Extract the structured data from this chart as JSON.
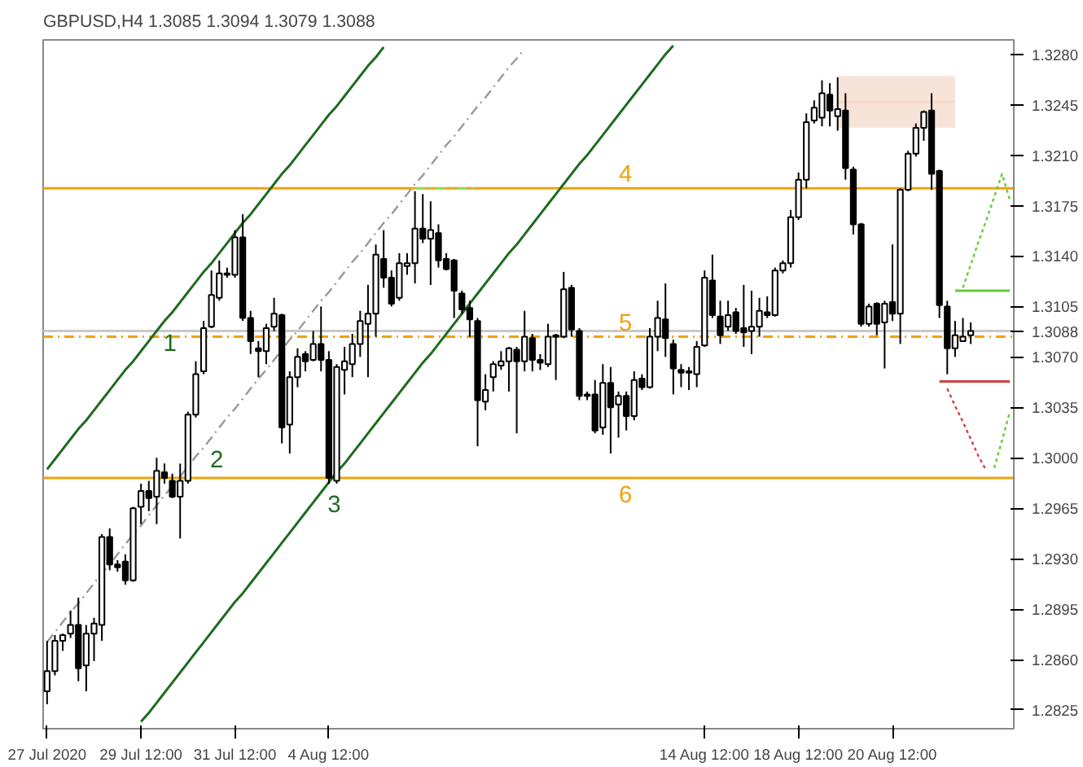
{
  "chart_data": {
    "type": "candlestick",
    "title": "GBPUSD,H4  1.3085 1.3094 1.3079 1.3088",
    "categories": [
      "27 Jul 2020",
      null,
      null,
      null,
      null,
      null,
      null,
      null,
      null,
      null,
      null,
      null,
      "29 Jul 12:00",
      null,
      null,
      null,
      null,
      null,
      null,
      null,
      null,
      null,
      null,
      null,
      "31 Jul 12:00",
      null,
      null,
      null,
      null,
      null,
      null,
      null,
      null,
      null,
      null,
      null,
      "4 Aug 12:00",
      null,
      null,
      null,
      null,
      null,
      null,
      null,
      null,
      null,
      null,
      null,
      null,
      null,
      null,
      null,
      null,
      null,
      null,
      null,
      null,
      null,
      null,
      null,
      null,
      null,
      null,
      null,
      null,
      null,
      null,
      null,
      null,
      null,
      null,
      null,
      null,
      null,
      null,
      null,
      null,
      null,
      null,
      null,
      null,
      null,
      null,
      null,
      "14 Aug 12:00",
      null,
      null,
      null,
      null,
      null,
      null,
      null,
      null,
      null,
      null,
      null,
      "18 Aug 12:00",
      null,
      null,
      null,
      null,
      null,
      null,
      null,
      null,
      null,
      null,
      null,
      "20 Aug 12:00",
      null,
      null,
      null,
      null,
      null,
      null,
      null,
      null,
      null,
      null,
      null,
      null,
      null,
      null,
      null
    ],
    "ohlc": [
      [
        1.2838,
        1.2873,
        1.2829,
        1.2852
      ],
      [
        1.2852,
        1.2877,
        1.2849,
        1.2873
      ],
      [
        1.2873,
        1.2878,
        1.2866,
        1.2877
      ],
      [
        1.2878,
        1.2894,
        1.2875,
        1.2884
      ],
      [
        1.2884,
        1.2903,
        1.2845,
        1.2854
      ],
      [
        1.2856,
        1.2884,
        1.2838,
        1.2878
      ],
      [
        1.2878,
        1.2889,
        1.2859,
        1.2885
      ],
      [
        1.2884,
        1.2947,
        1.2873,
        1.2945
      ],
      [
        1.2945,
        1.2951,
        1.2922,
        1.2926
      ],
      [
        1.2926,
        1.2929,
        1.2921,
        1.2924
      ],
      [
        1.2928,
        1.2933,
        1.2912,
        1.2915
      ],
      [
        1.2915,
        1.2966,
        1.2914,
        1.2965
      ],
      [
        1.2966,
        1.2982,
        1.2954,
        1.2977
      ],
      [
        1.2977,
        1.2984,
        1.2963,
        1.2972
      ],
      [
        1.2973,
        1.3,
        1.2954,
        1.2991
      ],
      [
        1.299,
        1.2996,
        1.2982,
        1.2986
      ],
      [
        1.2984,
        1.2989,
        1.2972,
        1.2973
      ],
      [
        1.2973,
        1.2996,
        1.2944,
        1.2984
      ],
      [
        1.2984,
        1.3032,
        1.2982,
        1.303
      ],
      [
        1.303,
        1.3067,
        1.3028,
        1.3058
      ],
      [
        1.306,
        1.3095,
        1.3058,
        1.309
      ],
      [
        1.3091,
        1.313,
        1.309,
        1.3113
      ],
      [
        1.3111,
        1.3137,
        1.3109,
        1.3128
      ],
      [
        1.3128,
        1.3132,
        1.3125,
        1.3127
      ],
      [
        1.3127,
        1.3158,
        1.3125,
        1.3153
      ],
      [
        1.3153,
        1.3169,
        1.3095,
        1.3097
      ],
      [
        1.3097,
        1.3102,
        1.3072,
        1.3081
      ],
      [
        1.3076,
        1.3081,
        1.3056,
        1.3074
      ],
      [
        1.3074,
        1.3093,
        1.3065,
        1.309
      ],
      [
        1.3091,
        1.3111,
        1.3088,
        1.31
      ],
      [
        1.3099,
        1.31,
        1.301,
        1.3021
      ],
      [
        1.3023,
        1.306,
        1.3003,
        1.3056
      ],
      [
        1.3056,
        1.3076,
        1.3049,
        1.307
      ],
      [
        1.3072,
        1.3074,
        1.306,
        1.3067
      ],
      [
        1.3068,
        1.3088,
        1.3067,
        1.3079
      ],
      [
        1.3079,
        1.3105,
        1.306,
        1.3068
      ],
      [
        1.3068,
        1.3074,
        1.2982,
        1.2986
      ],
      [
        1.2984,
        1.3065,
        1.2982,
        1.3063
      ],
      [
        1.3061,
        1.3077,
        1.3044,
        1.3067
      ],
      [
        1.3065,
        1.3086,
        1.3056,
        1.3079
      ],
      [
        1.3079,
        1.3102,
        1.307,
        1.3095
      ],
      [
        1.3093,
        1.312,
        1.3056,
        1.31
      ],
      [
        1.31,
        1.3148,
        1.3084,
        1.3141
      ],
      [
        1.3138,
        1.3158,
        1.3118,
        1.3125
      ],
      [
        1.3125,
        1.313,
        1.3105,
        1.3107
      ],
      [
        1.3111,
        1.3142,
        1.3109,
        1.3135
      ],
      [
        1.3133,
        1.3142,
        1.3127,
        1.3135
      ],
      [
        1.3135,
        1.3185,
        1.3121,
        1.3159
      ],
      [
        1.3159,
        1.3183,
        1.3149,
        1.3152
      ],
      [
        1.3152,
        1.3178,
        1.312,
        1.3158
      ],
      [
        1.3156,
        1.3162,
        1.3132,
        1.3137
      ],
      [
        1.3138,
        1.3142,
        1.313,
        1.3131
      ],
      [
        1.3137,
        1.3138,
        1.3097,
        1.3116
      ],
      [
        1.3114,
        1.3116,
        1.31,
        1.3103
      ],
      [
        1.3104,
        1.3109,
        1.3084,
        1.3096
      ],
      [
        1.3095,
        1.3097,
        1.3008,
        1.304
      ],
      [
        1.3039,
        1.3058,
        1.3033,
        1.3047
      ],
      [
        1.3056,
        1.3067,
        1.3046,
        1.3065
      ],
      [
        1.3064,
        1.3074,
        1.3061,
        1.3067
      ],
      [
        1.3067,
        1.3077,
        1.3046,
        1.3076
      ],
      [
        1.3075,
        1.3077,
        1.3017,
        1.3067
      ],
      [
        1.3067,
        1.3102,
        1.306,
        1.3084
      ],
      [
        1.3083,
        1.3086,
        1.306,
        1.3068
      ],
      [
        1.3068,
        1.3072,
        1.3061,
        1.3066
      ],
      [
        1.3065,
        1.3093,
        1.3063,
        1.3084
      ],
      [
        1.3084,
        1.3086,
        1.3054,
        1.3085
      ],
      [
        1.3084,
        1.3129,
        1.3083,
        1.3117
      ],
      [
        1.3118,
        1.312,
        1.3084,
        1.3089
      ],
      [
        1.3088,
        1.309,
        1.304,
        1.3043
      ],
      [
        1.3043,
        1.3046,
        1.304,
        1.3044
      ],
      [
        1.3044,
        1.3054,
        1.3017,
        1.3019
      ],
      [
        1.3021,
        1.3065,
        1.3016,
        1.3052
      ],
      [
        1.3052,
        1.3063,
        1.3003,
        1.3035
      ],
      [
        1.3037,
        1.3046,
        1.3014,
        1.3043
      ],
      [
        1.3043,
        1.3046,
        1.3019,
        1.3029
      ],
      [
        1.3029,
        1.306,
        1.3026,
        1.3054
      ],
      [
        1.3055,
        1.3058,
        1.3047,
        1.3049
      ],
      [
        1.3049,
        1.309,
        1.3048,
        1.3084
      ],
      [
        1.3084,
        1.3109,
        1.3074,
        1.3097
      ],
      [
        1.3096,
        1.3121,
        1.307,
        1.3083
      ],
      [
        1.3079,
        1.3082,
        1.3044,
        1.3062
      ],
      [
        1.3061,
        1.3065,
        1.3049,
        1.3059
      ],
      [
        1.306,
        1.3063,
        1.3047,
        1.3059
      ],
      [
        1.3058,
        1.3081,
        1.3049,
        1.3077
      ],
      [
        1.3078,
        1.313,
        1.3077,
        1.3125
      ],
      [
        1.3123,
        1.3141,
        1.3097,
        1.3099
      ],
      [
        1.3098,
        1.3109,
        1.3079,
        1.3085
      ],
      [
        1.3091,
        1.3109,
        1.3088,
        1.3099
      ],
      [
        1.3101,
        1.3104,
        1.3086,
        1.3088
      ],
      [
        1.309,
        1.312,
        1.3077,
        1.3087
      ],
      [
        1.3088,
        1.3116,
        1.3072,
        1.3091
      ],
      [
        1.3091,
        1.3111,
        1.3084,
        1.3102
      ],
      [
        1.3101,
        1.3112,
        1.3097,
        1.3099
      ],
      [
        1.3099,
        1.3132,
        1.3098,
        1.313
      ],
      [
        1.313,
        1.3137,
        1.3128,
        1.3135
      ],
      [
        1.3135,
        1.3172,
        1.3132,
        1.3167
      ],
      [
        1.3167,
        1.3198,
        1.3165,
        1.3193
      ],
      [
        1.3193,
        1.3239,
        1.3187,
        1.3233
      ],
      [
        1.3234,
        1.3248,
        1.3232,
        1.3243
      ],
      [
        1.3236,
        1.3262,
        1.323,
        1.3253
      ],
      [
        1.3252,
        1.326,
        1.323,
        1.3241
      ],
      [
        1.3237,
        1.3264,
        1.3227,
        1.3242
      ],
      [
        1.3241,
        1.3253,
        1.3193,
        1.3201
      ],
      [
        1.32,
        1.3202,
        1.3155,
        1.3162
      ],
      [
        1.3162,
        1.3163,
        1.3091,
        1.3093
      ],
      [
        1.3093,
        1.3107,
        1.3091,
        1.3105
      ],
      [
        1.3107,
        1.3108,
        1.3085,
        1.3093
      ],
      [
        1.3094,
        1.3109,
        1.3062,
        1.3107
      ],
      [
        1.3108,
        1.3148,
        1.3095,
        1.31
      ],
      [
        1.31,
        1.3187,
        1.3079,
        1.3186
      ],
      [
        1.3186,
        1.3213,
        1.3185,
        1.3211
      ],
      [
        1.3211,
        1.3232,
        1.3209,
        1.3229
      ],
      [
        1.3229,
        1.3241,
        1.322,
        1.324
      ],
      [
        1.3241,
        1.3253,
        1.3186,
        1.3197
      ],
      [
        1.3199,
        1.32,
        1.3097,
        1.3106
      ],
      [
        1.3105,
        1.3109,
        1.3058,
        1.3076
      ],
      [
        1.3076,
        1.3095,
        1.307,
        1.3085
      ],
      [
        1.3081,
        1.3097,
        1.3081,
        1.3084
      ],
      [
        1.3085,
        1.3094,
        1.3079,
        1.3088
      ],
      null,
      null,
      null,
      null,
      null
    ],
    "series": [
      {
        "type": "line",
        "color": "#f3d9c8",
        "line_style": "solid",
        "upper": [
          null,
          null,
          null,
          null,
          null,
          null,
          null,
          null,
          null,
          null,
          null,
          null,
          null,
          null,
          null,
          null,
          null,
          null,
          null,
          null,
          null,
          null,
          null,
          null,
          null,
          null,
          null,
          null,
          null,
          null,
          null,
          null,
          null,
          null,
          null,
          null,
          null,
          null,
          null,
          null,
          null,
          null,
          null,
          null,
          null,
          null,
          null,
          null,
          null,
          null,
          null,
          null,
          null,
          null,
          null,
          null,
          null,
          null,
          null,
          null,
          null,
          null,
          null,
          null,
          null,
          null,
          null,
          null,
          null,
          null,
          null,
          null,
          null,
          null,
          null,
          null,
          null,
          null,
          null,
          null,
          null,
          null,
          null,
          null,
          null,
          null,
          null,
          null,
          null,
          null,
          null,
          null,
          null,
          null,
          null,
          null,
          null,
          null,
          null,
          null,
          null,
          1.3265,
          1.3265,
          1.3265,
          1.3265,
          1.3265,
          1.3265,
          1.3265,
          1.3265,
          1.3265,
          1.3265,
          1.3265,
          1.3265,
          1.3265,
          1.3265,
          1.3265,
          1.3265,
          null,
          null,
          null,
          null,
          null,
          null,
          null
        ],
        "lower": [
          null,
          null,
          null,
          null,
          null,
          null,
          null,
          null,
          null,
          null,
          null,
          null,
          null,
          null,
          null,
          null,
          null,
          null,
          null,
          null,
          null,
          null,
          null,
          null,
          null,
          null,
          null,
          null,
          null,
          null,
          null,
          null,
          null,
          null,
          null,
          null,
          null,
          null,
          null,
          null,
          null,
          null,
          null,
          null,
          null,
          null,
          null,
          null,
          null,
          null,
          null,
          null,
          null,
          null,
          null,
          null,
          null,
          null,
          null,
          null,
          null,
          null,
          null,
          null,
          null,
          null,
          null,
          null,
          null,
          null,
          null,
          null,
          null,
          null,
          null,
          null,
          null,
          null,
          null,
          null,
          null,
          null,
          null,
          null,
          null,
          null,
          null,
          null,
          null,
          null,
          null,
          null,
          null,
          null,
          null,
          null,
          null,
          null,
          null,
          null,
          null,
          1.3229,
          1.3229,
          1.3229,
          1.3229,
          1.3229,
          1.3229,
          1.3229,
          1.3229,
          1.3229,
          1.3229,
          1.3229,
          1.3229,
          1.3229,
          1.3229,
          1.3229,
          1.3229,
          null,
          null,
          null,
          null,
          null,
          null,
          null
        ],
        "values": [
          null,
          null,
          null,
          null,
          null,
          null,
          null,
          null,
          null,
          null,
          null,
          null,
          null,
          null,
          null,
          null,
          null,
          null,
          null,
          null,
          null,
          null,
          null,
          null,
          null,
          null,
          null,
          null,
          null,
          null,
          null,
          null,
          null,
          null,
          null,
          null,
          null,
          null,
          null,
          null,
          null,
          null,
          null,
          null,
          null,
          null,
          null,
          null,
          null,
          null,
          null,
          null,
          null,
          null,
          null,
          null,
          null,
          null,
          null,
          null,
          null,
          null,
          null,
          null,
          null,
          null,
          null,
          null,
          null,
          null,
          null,
          null,
          null,
          null,
          null,
          null,
          null,
          null,
          null,
          null,
          null,
          null,
          null,
          null,
          null,
          null,
          null,
          null,
          null,
          null,
          null,
          null,
          null,
          null,
          null,
          null,
          null,
          null,
          null,
          null,
          null,
          1.3247,
          1.3247,
          1.3247,
          1.3247,
          1.3247,
          1.3247,
          1.3247,
          1.3247,
          1.3247,
          1.3247,
          1.3247,
          1.3247,
          1.3247,
          1.3247,
          1.3247,
          1.3247,
          null,
          null,
          null,
          null,
          null,
          null,
          null
        ]
      },
      {
        "type": "line",
        "name": "1",
        "color": "#1e6b1e",
        "line_style": "solid",
        "values": [
          1.2992,
          1.2999,
          1.3006,
          1.3013,
          1.302,
          1.3026,
          1.3033,
          1.304,
          1.3047,
          1.3054,
          1.3061,
          1.3067,
          1.3074,
          1.3081,
          1.3088,
          1.3095,
          1.3101,
          1.3108,
          1.3115,
          1.3122,
          1.3129,
          1.3135,
          1.3142,
          1.3149,
          1.3156,
          1.3163,
          1.3169,
          1.3176,
          1.3183,
          1.319,
          1.3197,
          1.3203,
          1.321,
          1.3217,
          1.3224,
          1.3231,
          1.3238,
          1.3244,
          1.3251,
          1.3258,
          1.3265,
          1.3272,
          1.3278,
          1.3285,
          null,
          null,
          null,
          null,
          null,
          null,
          null,
          null,
          null,
          null,
          null,
          null,
          null,
          null,
          null,
          null,
          null,
          null,
          null,
          null,
          null,
          null,
          null,
          null,
          null,
          null,
          null,
          null,
          null,
          null,
          null,
          null,
          null,
          null,
          null,
          null,
          null,
          null,
          null,
          null,
          null,
          null,
          null,
          null,
          null,
          null,
          null,
          null,
          null,
          null,
          null,
          null,
          null,
          null,
          null,
          null,
          null,
          null,
          null,
          null,
          null,
          null,
          null,
          null,
          null,
          null,
          null,
          null,
          null,
          null,
          null,
          null,
          null,
          null,
          null,
          null,
          null,
          null,
          null,
          null
        ]
      },
      {
        "type": "line",
        "name": "2",
        "color": "#999999",
        "line_style": "dashed",
        "values": [
          1.2872,
          1.2879,
          1.2886,
          1.2893,
          1.2899,
          1.2906,
          1.2913,
          1.292,
          1.2926,
          1.2933,
          1.294,
          1.2947,
          1.2953,
          1.296,
          1.2967,
          1.2974,
          1.298,
          1.2987,
          1.2994,
          1.3001,
          1.3007,
          1.3014,
          1.3021,
          1.3028,
          1.3034,
          1.3041,
          1.3048,
          1.3055,
          1.3061,
          1.3068,
          1.3075,
          1.3082,
          1.3088,
          1.3095,
          1.3102,
          1.3109,
          1.3115,
          1.3122,
          1.3129,
          1.3136,
          1.3142,
          1.3149,
          1.3156,
          1.3163,
          1.3169,
          1.3176,
          1.3183,
          1.319,
          1.3196,
          1.3203,
          1.321,
          1.3217,
          1.3223,
          1.323,
          1.3237,
          1.3244,
          1.325,
          1.3257,
          1.3264,
          1.3271,
          1.3277,
          1.3284,
          null,
          null,
          null,
          null,
          null,
          null,
          null,
          null,
          null,
          null,
          null,
          null,
          null,
          null,
          null,
          null,
          null,
          null,
          null,
          null,
          null,
          null,
          null,
          null,
          null,
          null,
          null,
          null,
          null,
          null,
          null,
          null,
          null,
          null,
          null,
          null,
          null,
          null,
          null,
          null,
          null,
          null,
          null,
          null,
          null,
          null,
          null,
          null,
          null,
          null,
          null,
          null,
          null,
          null,
          null,
          null,
          null,
          null,
          null,
          null,
          null,
          null
        ]
      },
      {
        "type": "line",
        "name": "3",
        "color": "#1e6b1e",
        "line_style": "solid",
        "values": [
          null,
          null,
          null,
          null,
          null,
          null,
          null,
          null,
          null,
          null,
          null,
          null,
          1.2817,
          1.2823,
          1.283,
          1.2837,
          1.2844,
          1.2851,
          1.2858,
          1.2865,
          1.2872,
          1.2879,
          1.2886,
          1.2893,
          1.29,
          1.2906,
          1.2913,
          1.292,
          1.2927,
          1.2934,
          1.2941,
          1.2948,
          1.2955,
          1.2962,
          1.2969,
          1.2976,
          1.2983,
          1.299,
          1.2996,
          1.3003,
          1.301,
          1.3017,
          1.3024,
          1.3031,
          1.3038,
          1.3045,
          1.3052,
          1.3059,
          1.3066,
          1.3072,
          1.3079,
          1.3086,
          1.3093,
          1.31,
          1.3107,
          1.3114,
          1.3121,
          1.3128,
          1.3135,
          1.3142,
          1.3148,
          1.3155,
          1.3162,
          1.3169,
          1.3176,
          1.3183,
          1.319,
          1.3197,
          1.3204,
          1.321,
          1.3217,
          1.3224,
          1.3231,
          1.3238,
          1.3245,
          1.3252,
          1.3259,
          1.3266,
          1.3273,
          1.328,
          1.3286,
          null,
          null,
          null,
          null,
          null,
          null,
          null,
          null,
          null,
          null,
          null,
          null,
          null,
          null,
          null,
          null,
          null,
          null,
          null,
          null,
          null,
          null,
          null,
          null,
          null,
          null,
          null,
          null,
          null,
          null,
          null,
          null,
          null,
          null,
          null,
          null,
          null,
          null,
          null,
          null,
          null,
          null,
          null
        ]
      },
      {
        "type": "line",
        "color": "#88dd66",
        "line_style": "dashed",
        "values": [
          null,
          null,
          null,
          null,
          null,
          null,
          null,
          null,
          null,
          null,
          null,
          null,
          null,
          null,
          null,
          null,
          null,
          null,
          null,
          null,
          null,
          null,
          null,
          null,
          null,
          null,
          null,
          null,
          null,
          null,
          null,
          null,
          null,
          null,
          null,
          null,
          null,
          null,
          null,
          null,
          null,
          null,
          null,
          null,
          null,
          null,
          null,
          1.3187,
          1.3187,
          1.3187,
          1.3187,
          1.3187,
          1.3187,
          1.3187,
          1.3187,
          1.3187,
          null,
          null,
          null,
          null,
          null,
          null,
          null,
          null,
          null,
          null,
          null,
          null,
          null,
          null,
          null,
          null,
          null,
          null,
          null,
          null,
          null,
          null,
          null,
          null,
          null,
          null,
          null,
          null,
          null,
          null,
          null,
          null,
          null,
          null,
          null,
          null,
          null,
          null,
          null,
          null,
          null,
          null,
          null,
          null,
          null,
          null,
          null,
          null,
          null,
          null,
          null,
          null,
          null,
          null,
          null,
          null,
          null,
          null,
          null,
          null,
          null,
          null,
          null,
          null,
          null,
          null,
          null,
          null
        ]
      },
      {
        "type": "line",
        "color": "#66cc33",
        "line_style": "solid",
        "values": [
          null,
          null,
          null,
          null,
          null,
          null,
          null,
          null,
          null,
          null,
          null,
          null,
          null,
          null,
          null,
          null,
          null,
          null,
          null,
          null,
          null,
          null,
          null,
          null,
          null,
          null,
          null,
          null,
          null,
          null,
          null,
          null,
          null,
          null,
          null,
          null,
          null,
          null,
          null,
          null,
          null,
          null,
          null,
          null,
          null,
          null,
          null,
          null,
          null,
          null,
          null,
          null,
          null,
          null,
          null,
          null,
          null,
          null,
          null,
          null,
          null,
          null,
          null,
          null,
          null,
          null,
          null,
          null,
          null,
          null,
          null,
          null,
          null,
          null,
          null,
          null,
          null,
          null,
          null,
          null,
          null,
          null,
          null,
          null,
          null,
          null,
          null,
          null,
          null,
          null,
          null,
          null,
          null,
          null,
          null,
          null,
          null,
          null,
          null,
          null,
          null,
          null,
          null,
          null,
          null,
          null,
          null,
          null,
          null,
          null,
          null,
          null,
          null,
          null,
          null,
          null,
          1.3116,
          1.3116,
          1.3116,
          1.3116,
          1.3116,
          1.3116,
          1.3116,
          1.3116
        ]
      },
      {
        "type": "line",
        "color": "#cc4444",
        "line_style": "solid",
        "values": [
          null,
          null,
          null,
          null,
          null,
          null,
          null,
          null,
          null,
          null,
          null,
          null,
          null,
          null,
          null,
          null,
          null,
          null,
          null,
          null,
          null,
          null,
          null,
          null,
          null,
          null,
          null,
          null,
          null,
          null,
          null,
          null,
          null,
          null,
          null,
          null,
          null,
          null,
          null,
          null,
          null,
          null,
          null,
          null,
          null,
          null,
          null,
          null,
          null,
          null,
          null,
          null,
          null,
          null,
          null,
          null,
          null,
          null,
          null,
          null,
          null,
          null,
          null,
          null,
          null,
          null,
          null,
          null,
          null,
          null,
          null,
          null,
          null,
          null,
          null,
          null,
          null,
          null,
          null,
          null,
          null,
          null,
          null,
          null,
          null,
          null,
          null,
          null,
          null,
          null,
          null,
          null,
          null,
          null,
          null,
          null,
          null,
          null,
          null,
          null,
          null,
          null,
          null,
          null,
          null,
          null,
          null,
          null,
          null,
          null,
          null,
          null,
          null,
          null,
          1.3053,
          1.3053,
          1.3053,
          1.3053,
          1.3053,
          1.3053,
          1.3053,
          1.3053,
          1.3053,
          1.3053
        ]
      },
      {
        "type": "line",
        "color": "#66cc33",
        "line_style": "dotted",
        "values": [
          null,
          null,
          null,
          null,
          null,
          null,
          null,
          null,
          null,
          null,
          null,
          null,
          null,
          null,
          null,
          null,
          null,
          null,
          null,
          null,
          null,
          null,
          null,
          null,
          null,
          null,
          null,
          null,
          null,
          null,
          null,
          null,
          null,
          null,
          null,
          null,
          null,
          null,
          null,
          null,
          null,
          null,
          null,
          null,
          null,
          null,
          null,
          null,
          null,
          null,
          null,
          null,
          null,
          null,
          null,
          null,
          null,
          null,
          null,
          null,
          null,
          null,
          null,
          null,
          null,
          null,
          null,
          null,
          null,
          null,
          null,
          null,
          null,
          null,
          null,
          null,
          null,
          null,
          null,
          null,
          null,
          null,
          null,
          null,
          null,
          null,
          null,
          null,
          null,
          null,
          null,
          null,
          null,
          null,
          null,
          null,
          null,
          null,
          null,
          null,
          null,
          null,
          null,
          null,
          null,
          null,
          null,
          null,
          null,
          null,
          null,
          null,
          null,
          null,
          null,
          null,
          null,
          1.3118,
          1.3134,
          1.315,
          1.3165,
          1.3181,
          1.3197,
          1.3179
        ]
      },
      {
        "type": "line",
        "color": "#cc4444",
        "line_style": "dotted",
        "values": [
          null,
          null,
          null,
          null,
          null,
          null,
          null,
          null,
          null,
          null,
          null,
          null,
          null,
          null,
          null,
          null,
          null,
          null,
          null,
          null,
          null,
          null,
          null,
          null,
          null,
          null,
          null,
          null,
          null,
          null,
          null,
          null,
          null,
          null,
          null,
          null,
          null,
          null,
          null,
          null,
          null,
          null,
          null,
          null,
          null,
          null,
          null,
          null,
          null,
          null,
          null,
          null,
          null,
          null,
          null,
          null,
          null,
          null,
          null,
          null,
          null,
          null,
          null,
          null,
          null,
          null,
          null,
          null,
          null,
          null,
          null,
          null,
          null,
          null,
          null,
          null,
          null,
          null,
          null,
          null,
          null,
          null,
          null,
          null,
          null,
          null,
          null,
          null,
          null,
          null,
          null,
          null,
          null,
          null,
          null,
          null,
          null,
          null,
          null,
          null,
          null,
          null,
          null,
          null,
          null,
          null,
          null,
          null,
          null,
          null,
          null,
          null,
          null,
          null,
          null,
          1.3048,
          1.3036,
          1.3025,
          1.3013,
          1.3001,
          1.2991,
          null,
          null,
          null
        ]
      },
      {
        "type": "line",
        "color": "#66cc33",
        "line_style": "dotted",
        "values": [
          null,
          null,
          null,
          null,
          null,
          null,
          null,
          null,
          null,
          null,
          null,
          null,
          null,
          null,
          null,
          null,
          null,
          null,
          null,
          null,
          null,
          null,
          null,
          null,
          null,
          null,
          null,
          null,
          null,
          null,
          null,
          null,
          null,
          null,
          null,
          null,
          null,
          null,
          null,
          null,
          null,
          null,
          null,
          null,
          null,
          null,
          null,
          null,
          null,
          null,
          null,
          null,
          null,
          null,
          null,
          null,
          null,
          null,
          null,
          null,
          null,
          null,
          null,
          null,
          null,
          null,
          null,
          null,
          null,
          null,
          null,
          null,
          null,
          null,
          null,
          null,
          null,
          null,
          null,
          null,
          null,
          null,
          null,
          null,
          null,
          null,
          null,
          null,
          null,
          null,
          null,
          null,
          null,
          null,
          null,
          null,
          null,
          null,
          null,
          null,
          null,
          null,
          null,
          null,
          null,
          null,
          null,
          null,
          null,
          null,
          null,
          null,
          null,
          null,
          null,
          null,
          null,
          null,
          null,
          null,
          null,
          1.2993,
          1.3012,
          1.3032
        ]
      }
    ],
    "ref_lines": [
      {
        "axis": "y",
        "value": 1.3187,
        "color": "#f0a30a",
        "line_style": "solid"
      },
      {
        "axis": "y",
        "value": 1.3084,
        "color": "#f0a30a",
        "line_style": "dashed"
      },
      {
        "axis": "y",
        "value": 1.2986,
        "color": "#f0a30a",
        "line_style": "solid"
      },
      {
        "axis": "y",
        "value": 1.3088,
        "label": "1.3088",
        "color": "#c8c8c8",
        "line_style": "solid"
      }
    ],
    "annotations": [
      {
        "text": "4",
        "y": 1.3187
      },
      {
        "text": "5",
        "y": 1.3084
      },
      {
        "text": "6",
        "y": 1.2986
      }
    ],
    "ylim": [
      1.2812,
      1.329
    ],
    "yticks": [
      {
        "value": 1.2825,
        "label": "1.2825"
      },
      {
        "value": 1.286,
        "label": "1.2860"
      },
      {
        "value": 1.2895,
        "label": "1.2895"
      },
      {
        "value": 1.293,
        "label": "1.2930"
      },
      {
        "value": 1.2965,
        "label": "1.2965"
      },
      {
        "value": 1.3,
        "label": "1.3000"
      },
      {
        "value": 1.3035,
        "label": "1.3035"
      },
      {
        "value": 1.307,
        "label": "1.3070"
      },
      {
        "value": 1.3105,
        "label": "1.3105"
      },
      {
        "value": 1.314,
        "label": "1.3140"
      },
      {
        "value": 1.3175,
        "label": "1.3175"
      },
      {
        "value": 1.321,
        "label": "1.3210"
      },
      {
        "value": 1.3245,
        "label": "1.3245"
      },
      {
        "value": 1.328,
        "label": "1.3280"
      }
    ],
    "grid": false
  }
}
